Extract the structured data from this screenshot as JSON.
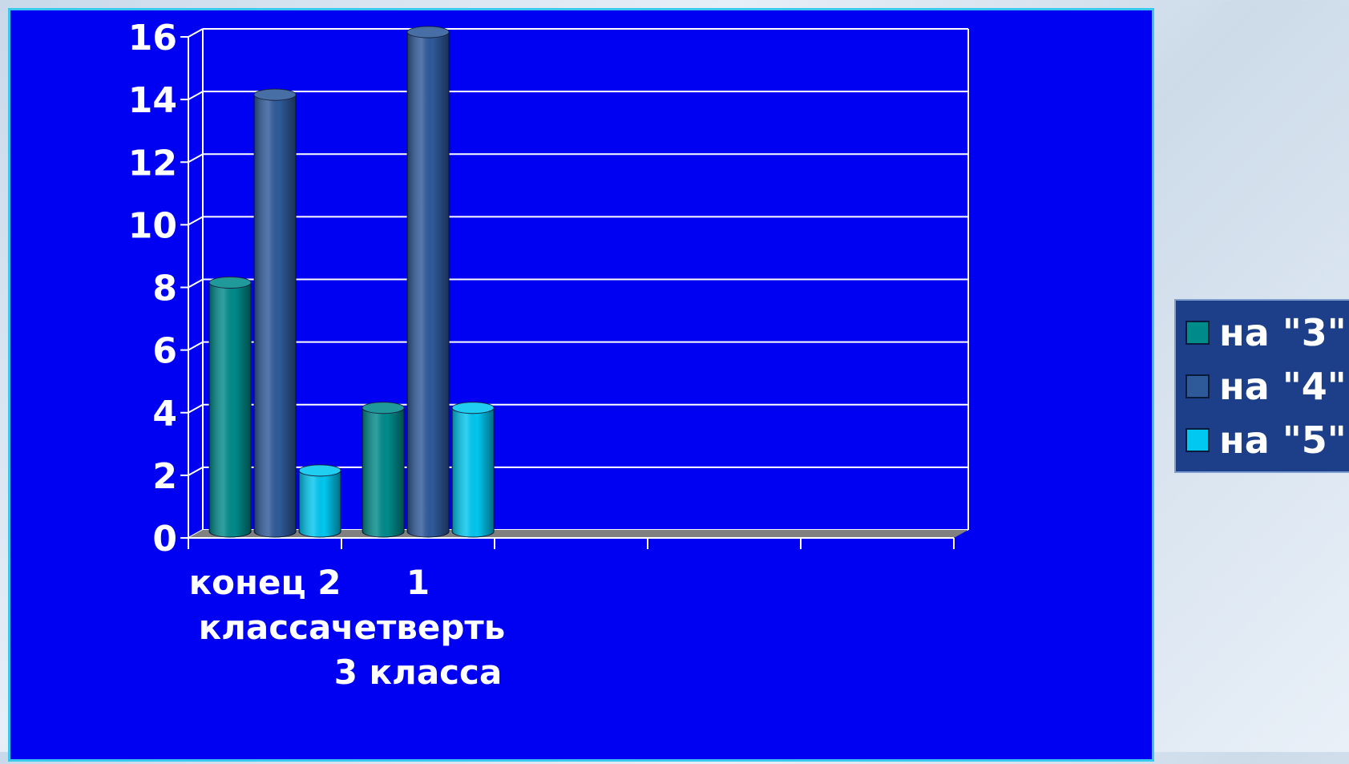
{
  "chart_data": {
    "type": "bar",
    "categories": [
      "конец 2 класса",
      "1 четверть 3 класса",
      "",
      "",
      ""
    ],
    "category_lines": [
      [
        "конец 2",
        "класса"
      ],
      [
        "1",
        "четверть",
        "3 класса"
      ],
      [],
      [],
      []
    ],
    "series": [
      {
        "name": "на \"3\"",
        "values": [
          8,
          4,
          null,
          null,
          null
        ],
        "color": "#008b8b"
      },
      {
        "name": "на \"4\"",
        "values": [
          14,
          16,
          null,
          null,
          null
        ],
        "color": "#2f5a9a"
      },
      {
        "name": "на \"5\"",
        "values": [
          2,
          4,
          null,
          null,
          null
        ],
        "color": "#00c8f0"
      }
    ],
    "yticks": [
      "0",
      "2",
      "4",
      "6",
      "8",
      "10",
      "12",
      "14",
      "16"
    ],
    "ylim": [
      0,
      16
    ],
    "grid": true,
    "legend_position": "right",
    "style_3d": "cylinder"
  },
  "colors": {
    "panel_background": "#0000f2",
    "panel_border": "#39c9ee",
    "gridline": "#ffffff",
    "floor": "#808080"
  }
}
